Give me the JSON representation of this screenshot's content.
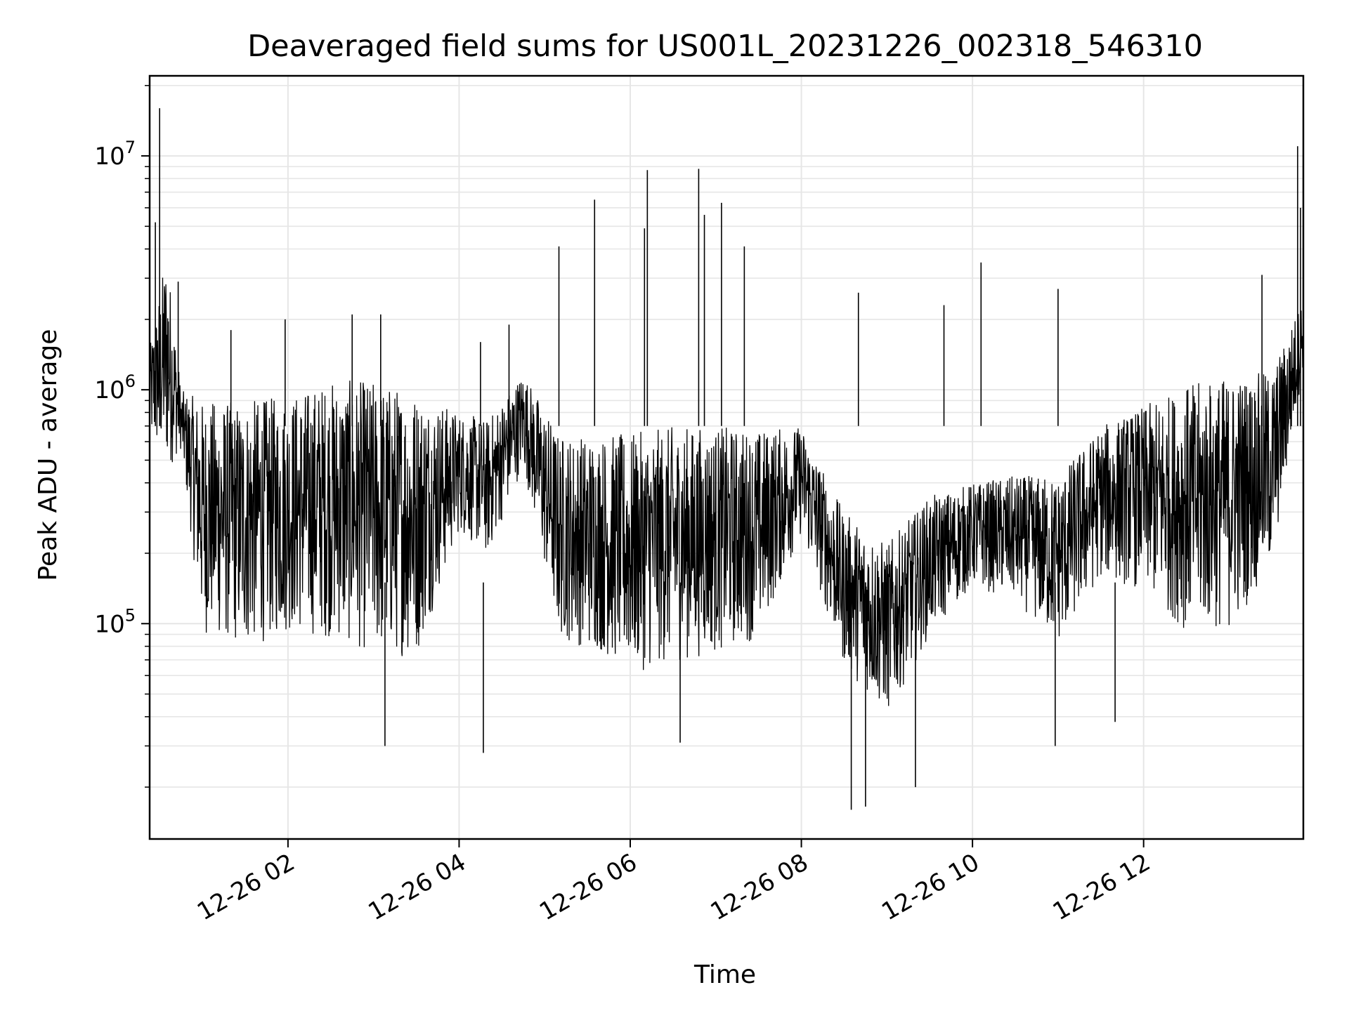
{
  "chart_data": {
    "type": "line",
    "title": "Deaveraged field sums for US001L_20231226_002318_546310",
    "xlabel": "Time",
    "ylabel": "Peak ADU - average",
    "yscale": "log",
    "ylim": [
      12000,
      22000000
    ],
    "xlim": [
      "2023-12-26 00:23",
      "2023-12-26 13:52"
    ],
    "grid": true,
    "line_color": "#000000",
    "grid_color": "#e6e6e6",
    "xticks": [
      {
        "time": "2023-12-26 02:00",
        "label": "12-26 02"
      },
      {
        "time": "2023-12-26 04:00",
        "label": "12-26 04"
      },
      {
        "time": "2023-12-26 06:00",
        "label": "12-26 06"
      },
      {
        "time": "2023-12-26 08:00",
        "label": "12-26 08"
      },
      {
        "time": "2023-12-26 10:00",
        "label": "12-26 10"
      },
      {
        "time": "2023-12-26 12:00",
        "label": "12-26 12"
      }
    ],
    "yticks": [
      {
        "value": 100000,
        "base": "10",
        "exp": "5"
      },
      {
        "value": 1000000,
        "base": "10",
        "exp": "6"
      },
      {
        "value": 10000000,
        "base": "10",
        "exp": "7"
      }
    ],
    "envelope": {
      "time": [
        "2023-12-26 00:23",
        "2023-12-26 00:35",
        "2023-12-26 00:45",
        "2023-12-26 01:00",
        "2023-12-26 01:30",
        "2023-12-26 02:00",
        "2023-12-26 02:30",
        "2023-12-26 03:00",
        "2023-12-26 03:30",
        "2023-12-26 04:00",
        "2023-12-26 04:20",
        "2023-12-26 04:45",
        "2023-12-26 05:10",
        "2023-12-26 05:40",
        "2023-12-26 06:00",
        "2023-12-26 06:30",
        "2023-12-26 07:00",
        "2023-12-26 07:30",
        "2023-12-26 08:00",
        "2023-12-26 08:30",
        "2023-12-26 09:00",
        "2023-12-26 09:30",
        "2023-12-26 10:00",
        "2023-12-26 10:30",
        "2023-12-26 11:00",
        "2023-12-26 11:30",
        "2023-12-26 12:00",
        "2023-12-26 12:30",
        "2023-12-26 13:00",
        "2023-12-26 13:30",
        "2023-12-26 13:52"
      ],
      "low": [
        500000,
        300000,
        500000,
        60000,
        50000,
        60000,
        55000,
        45000,
        45000,
        200000,
        150000,
        400000,
        60000,
        50000,
        40000,
        45000,
        50000,
        60000,
        200000,
        50000,
        30000,
        70000,
        120000,
        100000,
        60000,
        120000,
        100000,
        60000,
        60000,
        120000,
        1100000
      ],
      "high": [
        1500000,
        4000000,
        1000000,
        900000,
        900000,
        950000,
        1100000,
        1100000,
        1000000,
        800000,
        750000,
        1200000,
        650000,
        650000,
        650000,
        700000,
        700000,
        680000,
        700000,
        300000,
        220000,
        350000,
        400000,
        430000,
        430000,
        700000,
        850000,
        1050000,
        1150000,
        1200000,
        2500000
      ]
    },
    "spikes": [
      {
        "time": "2023-12-26 00:30",
        "value": 16000000
      },
      {
        "time": "2023-12-26 00:27",
        "value": 5200000
      },
      {
        "time": "2023-12-26 00:43",
        "value": 2900000
      },
      {
        "time": "2023-12-26 01:20",
        "value": 1800000
      },
      {
        "time": "2023-12-26 01:58",
        "value": 2000000
      },
      {
        "time": "2023-12-26 02:45",
        "value": 2100000
      },
      {
        "time": "2023-12-26 03:05",
        "value": 2100000
      },
      {
        "time": "2023-12-26 04:15",
        "value": 1600000
      },
      {
        "time": "2023-12-26 04:35",
        "value": 1900000
      },
      {
        "time": "2023-12-26 05:10",
        "value": 4100000
      },
      {
        "time": "2023-12-26 05:35",
        "value": 6500000
      },
      {
        "time": "2023-12-26 06:10",
        "value": 4900000
      },
      {
        "time": "2023-12-26 06:12",
        "value": 8700000
      },
      {
        "time": "2023-12-26 06:48",
        "value": 8800000
      },
      {
        "time": "2023-12-26 06:52",
        "value": 5600000
      },
      {
        "time": "2023-12-26 07:04",
        "value": 6300000
      },
      {
        "time": "2023-12-26 07:20",
        "value": 4100000
      },
      {
        "time": "2023-12-26 08:40",
        "value": 2600000
      },
      {
        "time": "2023-12-26 09:40",
        "value": 2300000
      },
      {
        "time": "2023-12-26 10:06",
        "value": 3500000
      },
      {
        "time": "2023-12-26 11:00",
        "value": 2700000
      },
      {
        "time": "2023-12-26 13:23",
        "value": 3100000
      },
      {
        "time": "2023-12-26 13:48",
        "value": 11000000
      },
      {
        "time": "2023-12-26 13:50",
        "value": 6000000
      }
    ],
    "dips": [
      {
        "time": "2023-12-26 03:08",
        "value": 30000
      },
      {
        "time": "2023-12-26 04:17",
        "value": 28000
      },
      {
        "time": "2023-12-26 06:35",
        "value": 31000
      },
      {
        "time": "2023-12-26 08:35",
        "value": 16000
      },
      {
        "time": "2023-12-26 08:45",
        "value": 16500
      },
      {
        "time": "2023-12-26 09:20",
        "value": 20000
      },
      {
        "time": "2023-12-26 10:58",
        "value": 30000
      },
      {
        "time": "2023-12-26 11:40",
        "value": 38000
      }
    ]
  }
}
